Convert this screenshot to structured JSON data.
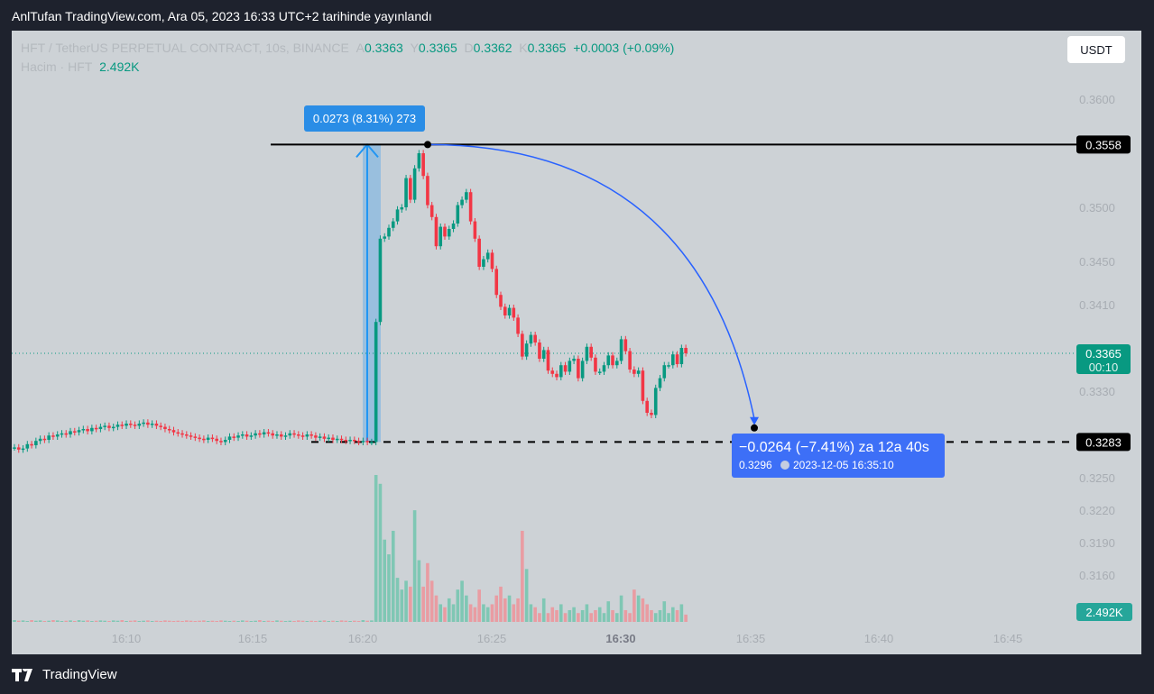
{
  "publication": "AnlTufan TradingView.com, Ara 05, 2023 16:33 UTC+2 tarihinde yayınlandı",
  "legend": {
    "symbol": "HFT / TetherUS PERPETUAL CONTRACT, 10s, BINANCE",
    "o_label": "A",
    "o": "0.3363",
    "h_label": "Y",
    "h": "0.3365",
    "l_label": "D",
    "l": "0.3362",
    "c_label": "K",
    "c": "0.3365",
    "change": "+0.0003 (+0.09%)",
    "volume_label": "Hacim · HFT",
    "volume": "2.492K"
  },
  "currency_button": "USDT",
  "brand": "TradingView",
  "colors": {
    "up": "#089981",
    "down": "#f23645",
    "drawing": "#2962ff",
    "range": "#2196f3"
  },
  "chart_data": {
    "type": "candlestick",
    "price_ticks": [
      "0.3600",
      "0.3500",
      "0.3450",
      "0.3410",
      "0.3330",
      "0.3250",
      "0.3220",
      "0.3190",
      "0.3160"
    ],
    "time_ticks": [
      "16:10",
      "16:15",
      "16:20",
      "16:25",
      "16:30",
      "16:35",
      "16:40",
      "16:45"
    ],
    "current_price": "0.3365",
    "countdown": "00:10",
    "volume_badge": "2.492K",
    "hline_high": "0.3558",
    "hline_low": "0.3283",
    "closes": [
      0.3278,
      0.3276,
      0.3277,
      0.3281,
      0.328,
      0.3284,
      0.3286,
      0.3285,
      0.3289,
      0.3288,
      0.329,
      0.3291,
      0.329,
      0.3293,
      0.3292,
      0.3294,
      0.3295,
      0.3293,
      0.3296,
      0.3295,
      0.3297,
      0.3298,
      0.3296,
      0.3297,
      0.3299,
      0.3298,
      0.33,
      0.3299,
      0.3298,
      0.33,
      0.3301,
      0.3299,
      0.33,
      0.3298,
      0.3297,
      0.3295,
      0.3294,
      0.3292,
      0.3291,
      0.329,
      0.3289,
      0.3288,
      0.3287,
      0.3286,
      0.3285,
      0.3287,
      0.3286,
      0.3284,
      0.3283,
      0.3285,
      0.3288,
      0.3287,
      0.3289,
      0.329,
      0.3288,
      0.3289,
      0.3291,
      0.329,
      0.3292,
      0.3291,
      0.3289,
      0.329,
      0.3288,
      0.3289,
      0.3291,
      0.329,
      0.3289,
      0.3288,
      0.329,
      0.3289,
      0.3287,
      0.3288,
      0.3286,
      0.3287,
      0.3285,
      0.3286,
      0.3285,
      0.3284,
      0.3285,
      0.3284,
      0.3283,
      0.3284,
      0.3283,
      0.3283,
      0.3394,
      0.3471,
      0.3473,
      0.3481,
      0.3487,
      0.3498,
      0.35,
      0.3527,
      0.3507,
      0.3536,
      0.355,
      0.3529,
      0.3502,
      0.3491,
      0.3464,
      0.3482,
      0.3473,
      0.348,
      0.3485,
      0.3502,
      0.3507,
      0.3514,
      0.3487,
      0.3471,
      0.3445,
      0.3452,
      0.3458,
      0.3443,
      0.3419,
      0.3408,
      0.34,
      0.3407,
      0.3398,
      0.3383,
      0.3362,
      0.3374,
      0.3382,
      0.3375,
      0.336,
      0.3368,
      0.3349,
      0.3346,
      0.3343,
      0.3354,
      0.3348,
      0.3358,
      0.336,
      0.3342,
      0.3358,
      0.3371,
      0.3361,
      0.3348,
      0.3348,
      0.3354,
      0.3363,
      0.3354,
      0.3358,
      0.3378,
      0.3367,
      0.335,
      0.3346,
      0.3349,
      0.3321,
      0.331,
      0.3308,
      0.3333,
      0.3342,
      0.3354,
      0.3354,
      0.3364,
      0.3355,
      0.337,
      0.3365
    ],
    "volumes_k": [
      0.6,
      0.4,
      0.5,
      0.3,
      0.6,
      0.4,
      0.5,
      0.3,
      0.4,
      0.6,
      0.5,
      0.3,
      0.4,
      0.5,
      0.3,
      0.6,
      0.4,
      0.5,
      0.3,
      0.4,
      0.5,
      0.4,
      0.3,
      0.5,
      0.4,
      0.6,
      0.3,
      0.4,
      0.5,
      0.3,
      0.4,
      0.5,
      0.3,
      0.4,
      0.3,
      0.5,
      0.4,
      0.3,
      0.4,
      0.3,
      0.5,
      0.4,
      0.3,
      0.4,
      0.5,
      0.3,
      0.4,
      0.3,
      0.5,
      0.4,
      0.3,
      0.4,
      0.3,
      0.5,
      0.4,
      0.3,
      0.4,
      0.6,
      0.3,
      0.4,
      0.3,
      0.5,
      0.4,
      0.3,
      0.4,
      0.3,
      0.5,
      0.4,
      0.3,
      0.4,
      0.3,
      0.4,
      0.5,
      0.3,
      0.4,
      0.3,
      0.5,
      0.4,
      0.3,
      0.4,
      0.3,
      0.6,
      0.4,
      0.5,
      50,
      47,
      28,
      23,
      31,
      15,
      11,
      14,
      12,
      38,
      21,
      12,
      20,
      14,
      9,
      6,
      5,
      8,
      6,
      11,
      14,
      9,
      6,
      5,
      11,
      6,
      5,
      6,
      9,
      12,
      8,
      9,
      6,
      8,
      31,
      18,
      6,
      5,
      3,
      8,
      3,
      5,
      4,
      6,
      3,
      4,
      5,
      3,
      4,
      6,
      3,
      4,
      5,
      3,
      7,
      4,
      3,
      9,
      4,
      3,
      11,
      9,
      8,
      6,
      4,
      3,
      4,
      7,
      3,
      5,
      4,
      6,
      2.492
    ]
  },
  "measure": {
    "label": "0.0273 (8.31%) 273"
  },
  "forecast": {
    "line1": "−0.0264 (−7.41%) za 12a 40s",
    "price": "0.3296",
    "date": "2023-12-05",
    "time": "16:35:10"
  }
}
